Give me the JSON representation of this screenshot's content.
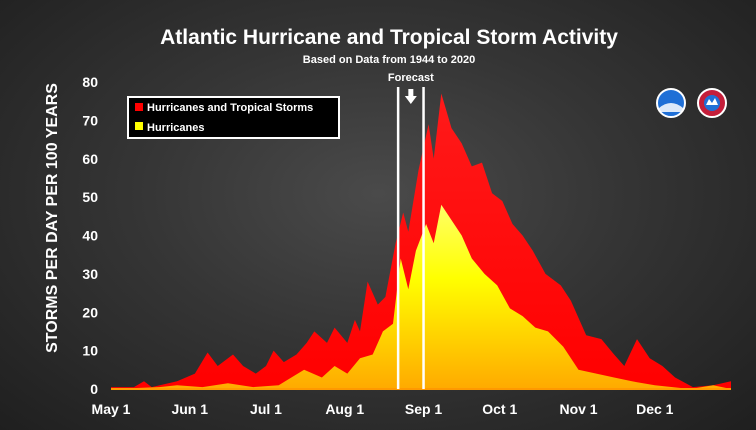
{
  "chart_data": {
    "type": "area",
    "title": "Atlantic Hurricane and Tropical Storm Activity",
    "subtitle": "Based on Data from 1944 to 2020",
    "ylabel": "STORMS PER DAY PER 100 YEARS",
    "xlabel": "",
    "ylim": [
      0,
      80
    ],
    "yticks": [
      0,
      10,
      20,
      30,
      40,
      50,
      60,
      70,
      80
    ],
    "xlim": [
      "2020-05-01",
      "2020-12-31"
    ],
    "xticks": [
      {
        "date": "2020-05-01",
        "label": "May 1"
      },
      {
        "date": "2020-06-01",
        "label": "Jun 1"
      },
      {
        "date": "2020-07-01",
        "label": "Jul 1"
      },
      {
        "date": "2020-08-01",
        "label": "Aug 1"
      },
      {
        "date": "2020-09-01",
        "label": "Sep 1"
      },
      {
        "date": "2020-10-01",
        "label": "Oct 1"
      },
      {
        "date": "2020-11-01",
        "label": "Nov 1"
      },
      {
        "date": "2020-12-01",
        "label": "Dec 1"
      }
    ],
    "grid": false,
    "legend_position": "top-left",
    "series": [
      {
        "name": "Hurricanes and Tropical Storms",
        "color": "#ff0000",
        "points": [
          [
            "2020-05-01",
            0.5
          ],
          [
            "2020-05-10",
            0.5
          ],
          [
            "2020-05-14",
            2
          ],
          [
            "2020-05-17",
            0.5
          ],
          [
            "2020-05-27",
            2
          ],
          [
            "2020-06-03",
            4
          ],
          [
            "2020-06-08",
            9.5
          ],
          [
            "2020-06-12",
            6
          ],
          [
            "2020-06-18",
            9
          ],
          [
            "2020-06-22",
            6
          ],
          [
            "2020-06-27",
            4
          ],
          [
            "2020-07-01",
            6
          ],
          [
            "2020-07-04",
            10
          ],
          [
            "2020-07-08",
            7
          ],
          [
            "2020-07-13",
            9
          ],
          [
            "2020-07-17",
            12
          ],
          [
            "2020-07-20",
            15
          ],
          [
            "2020-07-25",
            12
          ],
          [
            "2020-07-28",
            16
          ],
          [
            "2020-08-02",
            12
          ],
          [
            "2020-08-05",
            18
          ],
          [
            "2020-08-07",
            15
          ],
          [
            "2020-08-10",
            28
          ],
          [
            "2020-08-14",
            22
          ],
          [
            "2020-08-17",
            24
          ],
          [
            "2020-08-21",
            38
          ],
          [
            "2020-08-24",
            46
          ],
          [
            "2020-08-26",
            41
          ],
          [
            "2020-08-30",
            57
          ],
          [
            "2020-09-03",
            69
          ],
          [
            "2020-09-05",
            60
          ],
          [
            "2020-09-08",
            77
          ],
          [
            "2020-09-12",
            68
          ],
          [
            "2020-09-16",
            64
          ],
          [
            "2020-09-20",
            58
          ],
          [
            "2020-09-24",
            59
          ],
          [
            "2020-09-28",
            51
          ],
          [
            "2020-10-02",
            49
          ],
          [
            "2020-10-06",
            43
          ],
          [
            "2020-10-10",
            40
          ],
          [
            "2020-10-14",
            36
          ],
          [
            "2020-10-19",
            30
          ],
          [
            "2020-10-25",
            27
          ],
          [
            "2020-10-29",
            23
          ],
          [
            "2020-11-04",
            14
          ],
          [
            "2020-11-10",
            13
          ],
          [
            "2020-11-15",
            9
          ],
          [
            "2020-11-19",
            6
          ],
          [
            "2020-11-24",
            13
          ],
          [
            "2020-11-29",
            8
          ],
          [
            "2020-12-04",
            6
          ],
          [
            "2020-12-09",
            3
          ],
          [
            "2020-12-16",
            0.5
          ],
          [
            "2020-12-24",
            1
          ],
          [
            "2020-12-31",
            2
          ]
        ]
      },
      {
        "name": "Hurricanes",
        "color": "#ffff00",
        "points": [
          [
            "2020-05-01",
            0
          ],
          [
            "2020-05-20",
            0.5
          ],
          [
            "2020-05-27",
            1
          ],
          [
            "2020-06-06",
            0.5
          ],
          [
            "2020-06-16",
            1.5
          ],
          [
            "2020-06-26",
            0.5
          ],
          [
            "2020-07-06",
            1
          ],
          [
            "2020-07-16",
            5
          ],
          [
            "2020-07-23",
            3
          ],
          [
            "2020-07-28",
            6
          ],
          [
            "2020-08-02",
            4
          ],
          [
            "2020-08-07",
            8
          ],
          [
            "2020-08-12",
            9
          ],
          [
            "2020-08-16",
            15
          ],
          [
            "2020-08-20",
            17
          ],
          [
            "2020-08-23",
            34
          ],
          [
            "2020-08-26",
            26
          ],
          [
            "2020-08-29",
            36
          ],
          [
            "2020-09-02",
            43
          ],
          [
            "2020-09-05",
            38
          ],
          [
            "2020-09-08",
            48
          ],
          [
            "2020-09-12",
            44
          ],
          [
            "2020-09-16",
            40
          ],
          [
            "2020-09-20",
            34
          ],
          [
            "2020-09-25",
            30
          ],
          [
            "2020-09-30",
            27
          ],
          [
            "2020-10-05",
            21
          ],
          [
            "2020-10-10",
            19
          ],
          [
            "2020-10-15",
            16
          ],
          [
            "2020-10-20",
            15
          ],
          [
            "2020-10-26",
            11
          ],
          [
            "2020-11-01",
            5
          ],
          [
            "2020-11-08",
            4
          ],
          [
            "2020-11-15",
            3
          ],
          [
            "2020-11-22",
            2
          ],
          [
            "2020-12-01",
            1
          ],
          [
            "2020-12-15",
            0
          ],
          [
            "2020-12-24",
            1
          ],
          [
            "2020-12-31",
            0
          ]
        ]
      }
    ],
    "annotations": [
      {
        "text": "Forecast",
        "from": "2020-08-22",
        "to": "2020-09-01"
      }
    ]
  },
  "logos": [
    {
      "name": "noaa-logo",
      "color": "#1f6fd6"
    },
    {
      "name": "nws-logo",
      "color": "#c41e3a"
    }
  ]
}
